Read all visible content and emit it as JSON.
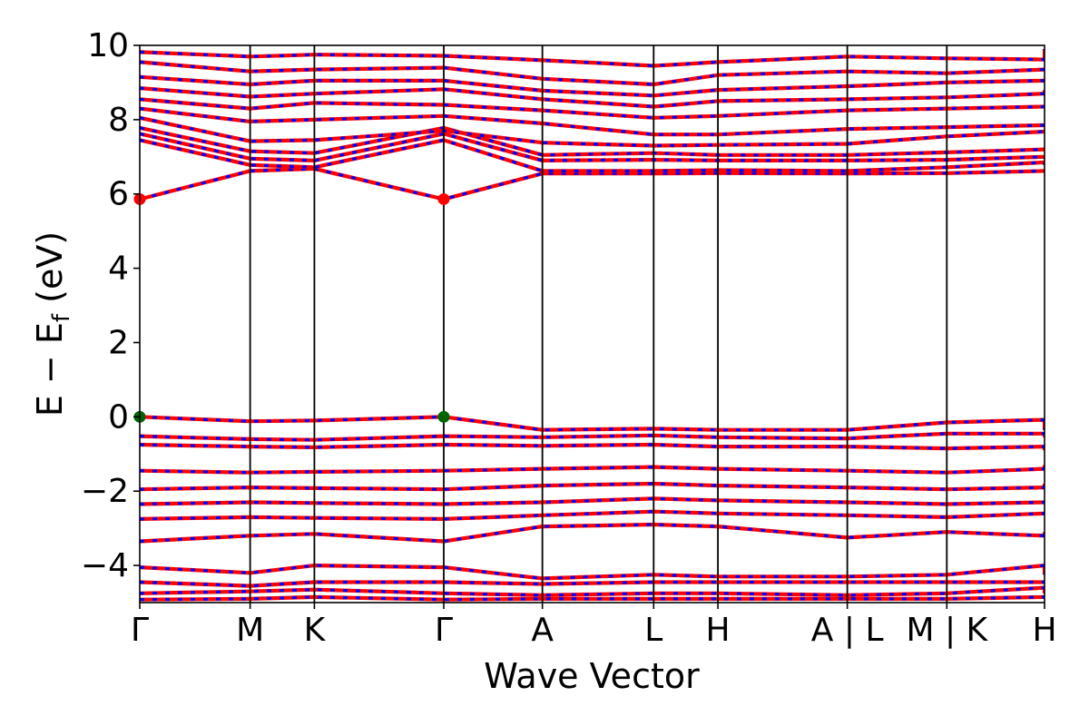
{
  "chart_data": {
    "type": "line",
    "title": "",
    "xlabel": "Wave Vector",
    "ylabel": {
      "main": "E − E",
      "sub": "f",
      "unit": "(eV)"
    },
    "ylim": [
      -5,
      10
    ],
    "yticks": [
      -4,
      -2,
      0,
      2,
      4,
      6,
      8,
      10
    ],
    "ytick_labels": [
      "−4",
      "−2",
      "0",
      "2",
      "4",
      "6",
      "8",
      "10"
    ],
    "xlim": [
      0,
      1
    ],
    "kpoints": [
      {
        "label": "Γ",
        "x": 0.0
      },
      {
        "label": "M",
        "x": 0.122
      },
      {
        "label": "K",
        "x": 0.193
      },
      {
        "label": "Γ",
        "x": 0.336
      },
      {
        "label": "A",
        "x": 0.445
      },
      {
        "label": "L",
        "x": 0.568
      },
      {
        "label": "H",
        "x": 0.639
      },
      {
        "label": "A | L",
        "x": 0.782
      },
      {
        "label": "M | K",
        "x": 0.892
      },
      {
        "label": "H",
        "x": 1.0
      }
    ],
    "series_colors": {
      "spin_up": "#ff0000",
      "spin_down": "#0000ff"
    },
    "markers": {
      "cbm": {
        "color": "#ff0000",
        "energy": 5.86,
        "x": [
          0.0,
          0.336
        ]
      },
      "vbm": {
        "color": "#006400",
        "energy": 0.0,
        "x": [
          0.0,
          0.336
        ]
      }
    },
    "bands": {
      "conduction": [
        [
          5.86,
          6.62,
          6.68,
          5.86,
          6.55,
          6.55,
          6.56,
          6.55,
          6.56,
          6.62,
          6.6
        ],
        [
          7.45,
          6.78,
          6.72,
          7.45,
          6.62,
          6.62,
          6.64,
          6.62,
          6.72,
          6.85,
          6.78
        ],
        [
          7.62,
          6.95,
          6.9,
          7.62,
          6.9,
          6.92,
          6.9,
          6.9,
          6.92,
          7.0,
          6.95
        ],
        [
          7.78,
          7.15,
          7.1,
          7.78,
          7.05,
          7.1,
          7.05,
          7.05,
          7.12,
          7.2,
          7.2
        ],
        [
          8.05,
          7.42,
          7.45,
          7.7,
          7.38,
          7.3,
          7.32,
          7.35,
          7.55,
          7.68,
          7.65
        ],
        [
          8.3,
          7.95,
          8.0,
          8.1,
          7.9,
          7.6,
          7.6,
          7.75,
          7.8,
          7.85,
          7.8
        ],
        [
          8.55,
          8.3,
          8.45,
          8.4,
          8.25,
          8.05,
          8.1,
          8.25,
          8.3,
          8.35,
          8.4
        ],
        [
          8.85,
          8.62,
          8.7,
          8.82,
          8.55,
          8.35,
          8.5,
          8.55,
          8.6,
          8.7,
          8.8
        ],
        [
          9.15,
          8.95,
          9.05,
          9.05,
          8.78,
          8.65,
          8.8,
          8.9,
          9.0,
          9.05,
          9.1
        ],
        [
          9.55,
          9.3,
          9.35,
          9.4,
          9.1,
          8.95,
          9.2,
          9.3,
          9.25,
          9.35,
          9.3
        ],
        [
          9.82,
          9.7,
          9.75,
          9.72,
          9.6,
          9.45,
          9.55,
          9.7,
          9.65,
          9.62,
          9.9
        ]
      ],
      "valence": [
        [
          0.0,
          -0.12,
          -0.1,
          0.0,
          -0.35,
          -0.32,
          -0.35,
          -0.35,
          -0.15,
          -0.08,
          -0.35
        ],
        [
          -0.52,
          -0.6,
          -0.62,
          -0.52,
          -0.55,
          -0.5,
          -0.55,
          -0.58,
          -0.45,
          -0.45,
          -0.55
        ],
        [
          -0.75,
          -0.8,
          -0.82,
          -0.75,
          -0.78,
          -0.75,
          -0.8,
          -0.8,
          -0.85,
          -0.8,
          -0.9
        ],
        [
          -1.45,
          -1.5,
          -1.48,
          -1.45,
          -1.4,
          -1.35,
          -1.4,
          -1.45,
          -1.5,
          -1.4,
          -1.3
        ],
        [
          -1.95,
          -1.9,
          -1.92,
          -1.95,
          -1.85,
          -1.8,
          -1.85,
          -1.9,
          -1.95,
          -1.9,
          -1.8
        ],
        [
          -2.35,
          -2.3,
          -2.32,
          -2.35,
          -2.3,
          -2.2,
          -2.25,
          -2.3,
          -2.35,
          -2.3,
          -2.3
        ],
        [
          -2.75,
          -2.7,
          -2.72,
          -2.75,
          -2.65,
          -2.55,
          -2.6,
          -2.65,
          -2.7,
          -2.6,
          -2.65
        ],
        [
          -3.35,
          -3.2,
          -3.15,
          -3.35,
          -2.95,
          -2.9,
          -2.95,
          -3.25,
          -3.1,
          -3.2,
          -3.1
        ],
        [
          -4.05,
          -4.2,
          -4.0,
          -4.05,
          -4.35,
          -4.25,
          -4.3,
          -4.3,
          -4.25,
          -4.0,
          -4.25
        ],
        [
          -4.45,
          -4.55,
          -4.45,
          -4.45,
          -4.5,
          -4.45,
          -4.45,
          -4.45,
          -4.45,
          -4.45,
          -4.4
        ],
        [
          -4.75,
          -4.7,
          -4.65,
          -4.75,
          -4.8,
          -4.75,
          -4.75,
          -4.8,
          -4.75,
          -4.6,
          -4.75
        ],
        [
          -4.92,
          -4.9,
          -4.85,
          -4.92,
          -4.9,
          -4.9,
          -4.9,
          -4.9,
          -4.9,
          -4.85,
          -4.9
        ]
      ]
    }
  }
}
